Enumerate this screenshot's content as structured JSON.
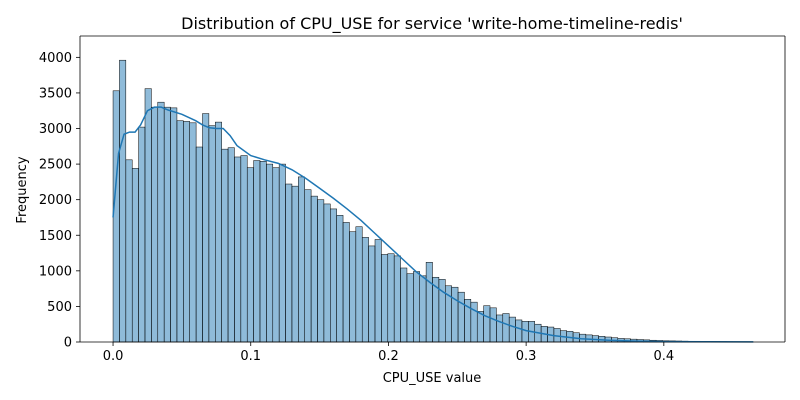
{
  "chart_data": {
    "type": "bar",
    "title": "Distribution of CPU_USE for service 'write-home-timeline-redis'",
    "xlabel": "CPU_USE value",
    "ylabel": "Frequency",
    "xlim": [
      -0.024,
      0.488
    ],
    "ylim": [
      0,
      4300
    ],
    "xticks": [
      0.0,
      0.1,
      0.2,
      0.3,
      0.4
    ],
    "xtick_labels": [
      "0.0",
      "0.1",
      "0.2",
      "0.3",
      "0.4"
    ],
    "yticks": [
      0,
      500,
      1000,
      1500,
      2000,
      2500,
      3000,
      3500,
      4000
    ],
    "ytick_labels": [
      "0",
      "500",
      "1000",
      "1500",
      "2000",
      "2500",
      "3000",
      "3500",
      "4000"
    ],
    "bin_start": 0.0,
    "bin_width": 0.00464,
    "counts": [
      3530,
      3960,
      2560,
      2440,
      3020,
      3560,
      3300,
      3370,
      3300,
      3290,
      3110,
      3100,
      3080,
      2740,
      3210,
      3040,
      3090,
      2710,
      2730,
      2600,
      2620,
      2450,
      2550,
      2540,
      2500,
      2450,
      2500,
      2220,
      2190,
      2320,
      2140,
      2050,
      2000,
      1940,
      1870,
      1780,
      1680,
      1550,
      1620,
      1470,
      1350,
      1440,
      1230,
      1240,
      1210,
      1040,
      960,
      990,
      930,
      1120,
      910,
      880,
      790,
      770,
      700,
      600,
      560,
      430,
      510,
      480,
      380,
      400,
      350,
      310,
      290,
      290,
      250,
      220,
      210,
      190,
      160,
      150,
      130,
      110,
      100,
      90,
      80,
      70,
      60,
      50,
      45,
      40,
      35,
      30,
      25,
      22,
      18,
      16,
      14,
      12,
      10,
      9,
      8,
      7,
      6,
      5,
      4,
      3,
      3,
      2
    ],
    "kde_x": [
      0.0,
      0.004,
      0.008,
      0.012,
      0.016,
      0.02,
      0.025,
      0.03,
      0.035,
      0.04,
      0.05,
      0.06,
      0.065,
      0.07,
      0.075,
      0.08,
      0.085,
      0.09,
      0.1,
      0.11,
      0.12,
      0.13,
      0.14,
      0.15,
      0.16,
      0.17,
      0.18,
      0.19,
      0.2,
      0.21,
      0.22,
      0.23,
      0.24,
      0.25,
      0.26,
      0.27,
      0.28,
      0.29,
      0.3,
      0.32,
      0.34,
      0.36,
      0.38,
      0.4,
      0.43,
      0.465
    ],
    "kde_y": [
      1750,
      2650,
      2920,
      2950,
      2950,
      3050,
      3250,
      3300,
      3300,
      3260,
      3200,
      3110,
      3050,
      3010,
      3000,
      3000,
      2900,
      2760,
      2620,
      2560,
      2510,
      2420,
      2300,
      2160,
      2020,
      1870,
      1710,
      1530,
      1350,
      1170,
      990,
      840,
      700,
      580,
      470,
      370,
      290,
      220,
      160,
      90,
      45,
      25,
      12,
      6,
      3,
      2
    ],
    "colors": {
      "bar_fill": "#1f77b4",
      "kde_line": "#1f77b4"
    },
    "grid": false,
    "legend": "none"
  }
}
